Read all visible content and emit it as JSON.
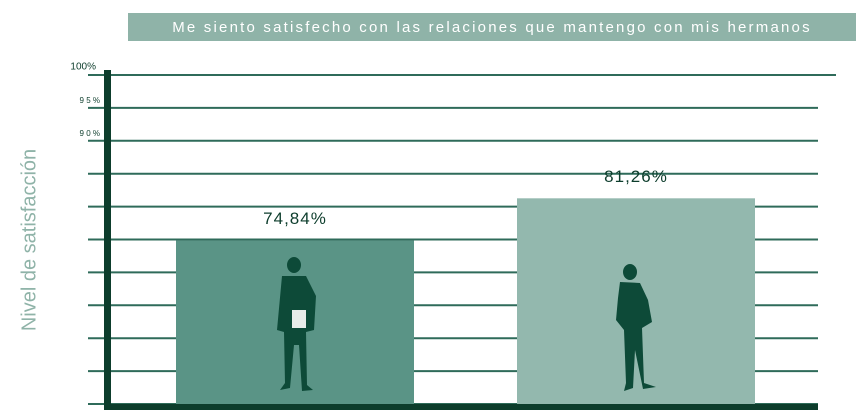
{
  "chart_data": {
    "type": "bar",
    "title": "Me siento satisfecho con las relaciones que mantengo con mis hermanos",
    "y_label": "Nivel de satisfacción",
    "values": [
      74.84,
      81.26
    ],
    "value_labels": [
      "74,84%",
      "81,26%"
    ],
    "colors": [
      "#5a9486",
      "#93b8ae"
    ],
    "ylim": [
      50,
      100
    ],
    "yticks": [
      {
        "value": 100,
        "label": "100%"
      },
      {
        "value": 95,
        "label": "9 5 %"
      },
      {
        "value": 90,
        "label": "9 0 %"
      },
      {
        "value": 85,
        "label": null
      },
      {
        "value": 80,
        "label": null
      },
      {
        "value": 75,
        "label": null
      },
      {
        "value": 70,
        "label": null
      },
      {
        "value": 65,
        "label": null
      },
      {
        "value": 60,
        "label": null
      },
      {
        "value": 55,
        "label": null
      },
      {
        "value": 50,
        "label": null
      }
    ],
    "grid": true
  }
}
